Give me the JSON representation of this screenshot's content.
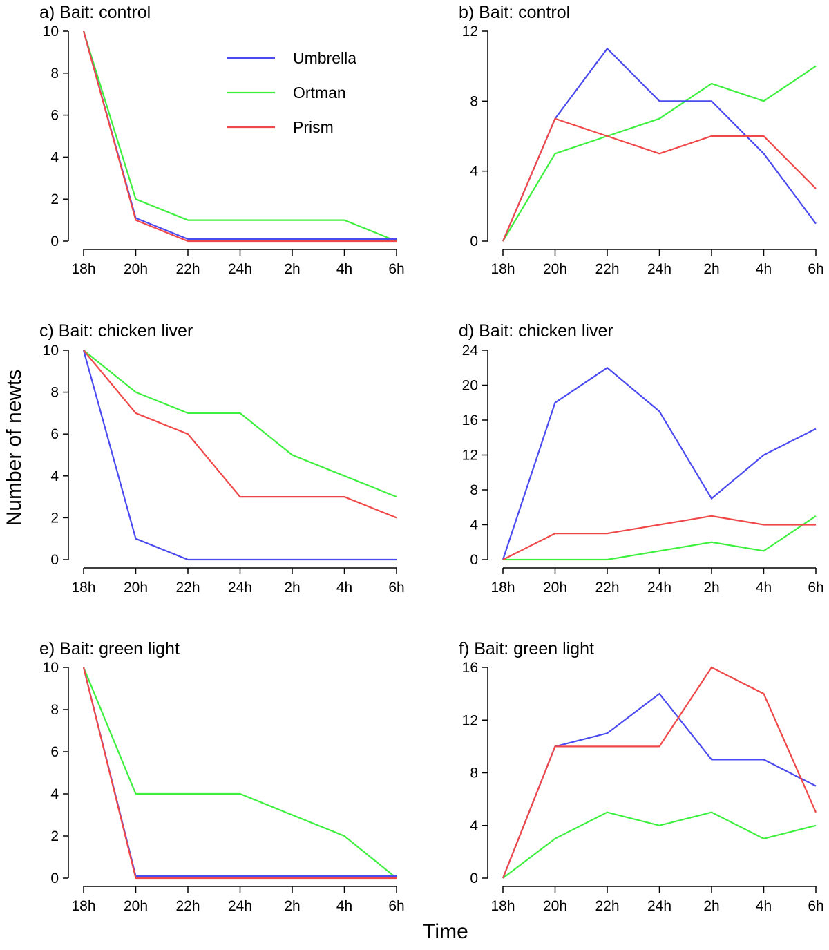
{
  "figure": {
    "ylabel": "Number of newts",
    "xlabel": "Time"
  },
  "legend": [
    {
      "name": "Umbrella",
      "color": "#4a4af0"
    },
    {
      "name": "Ortman",
      "color": "#3ef03e"
    },
    {
      "name": "Prism",
      "color": "#f04848"
    }
  ],
  "chart_data": [
    {
      "type": "line",
      "title": "a) Bait: control",
      "categories": [
        "18h",
        "20h",
        "22h",
        "24h",
        "2h",
        "4h",
        "6h"
      ],
      "ylim": [
        0,
        10
      ],
      "yticks": [
        0,
        2,
        4,
        6,
        8,
        10
      ],
      "series": [
        {
          "name": "Umbrella",
          "values": [
            10,
            1.1,
            0.1,
            0.1,
            0.1,
            0.1,
            0.1
          ]
        },
        {
          "name": "Ortman",
          "values": [
            10,
            2,
            1,
            1,
            1,
            1,
            0
          ]
        },
        {
          "name": "Prism",
          "values": [
            10,
            1,
            0,
            0,
            0,
            0,
            0
          ]
        }
      ]
    },
    {
      "type": "line",
      "title": "b) Bait: control",
      "categories": [
        "18h",
        "20h",
        "22h",
        "24h",
        "2h",
        "4h",
        "6h"
      ],
      "ylim": [
        0,
        12
      ],
      "yticks": [
        0,
        4,
        8,
        12
      ],
      "series": [
        {
          "name": "Umbrella",
          "values": [
            0,
            7,
            11,
            8,
            8,
            5,
            1
          ]
        },
        {
          "name": "Ortman",
          "values": [
            0,
            5,
            6,
            7,
            9,
            8,
            10
          ]
        },
        {
          "name": "Prism",
          "values": [
            0,
            7,
            6,
            5,
            6,
            6,
            3
          ]
        }
      ]
    },
    {
      "type": "line",
      "title": "c) Bait: chicken liver",
      "categories": [
        "18h",
        "20h",
        "22h",
        "24h",
        "2h",
        "4h",
        "6h"
      ],
      "ylim": [
        0,
        10
      ],
      "yticks": [
        0,
        2,
        4,
        6,
        8,
        10
      ],
      "series": [
        {
          "name": "Umbrella",
          "values": [
            10,
            1,
            0,
            0,
            0,
            0,
            0
          ]
        },
        {
          "name": "Ortman",
          "values": [
            10,
            8,
            7,
            7,
            5,
            4,
            3
          ]
        },
        {
          "name": "Prism",
          "values": [
            10,
            7,
            6,
            3,
            3,
            3,
            2
          ]
        }
      ]
    },
    {
      "type": "line",
      "title": "d) Bait: chicken liver",
      "categories": [
        "18h",
        "20h",
        "22h",
        "24h",
        "2h",
        "4h",
        "6h"
      ],
      "ylim": [
        0,
        24
      ],
      "yticks": [
        0,
        4,
        8,
        12,
        16,
        20,
        24
      ],
      "series": [
        {
          "name": "Umbrella",
          "values": [
            0,
            18,
            22,
            17,
            7,
            12,
            15
          ]
        },
        {
          "name": "Ortman",
          "values": [
            0,
            0,
            0,
            1,
            2,
            1,
            5
          ]
        },
        {
          "name": "Prism",
          "values": [
            0,
            3,
            3,
            4,
            5,
            4,
            4
          ]
        }
      ]
    },
    {
      "type": "line",
      "title": "e) Bait: green light",
      "categories": [
        "18h",
        "20h",
        "22h",
        "24h",
        "2h",
        "4h",
        "6h"
      ],
      "ylim": [
        0,
        10
      ],
      "yticks": [
        0,
        2,
        4,
        6,
        8,
        10
      ],
      "series": [
        {
          "name": "Umbrella",
          "values": [
            10,
            0.1,
            0.1,
            0.1,
            0.1,
            0.1,
            0.1
          ]
        },
        {
          "name": "Ortman",
          "values": [
            10,
            4,
            4,
            4,
            3,
            2,
            0
          ]
        },
        {
          "name": "Prism",
          "values": [
            10,
            0,
            0,
            0,
            0,
            0,
            0
          ]
        }
      ]
    },
    {
      "type": "line",
      "title": "f) Bait: green light",
      "categories": [
        "18h",
        "20h",
        "22h",
        "24h",
        "2h",
        "4h",
        "6h"
      ],
      "ylim": [
        0,
        16
      ],
      "yticks": [
        0,
        4,
        8,
        12,
        16
      ],
      "series": [
        {
          "name": "Umbrella",
          "values": [
            0,
            10,
            11,
            14,
            9,
            9,
            7
          ]
        },
        {
          "name": "Ortman",
          "values": [
            0,
            3,
            5,
            4,
            5,
            3,
            4
          ]
        },
        {
          "name": "Prism",
          "values": [
            0,
            10,
            10,
            10,
            16,
            14,
            5
          ]
        }
      ]
    }
  ]
}
